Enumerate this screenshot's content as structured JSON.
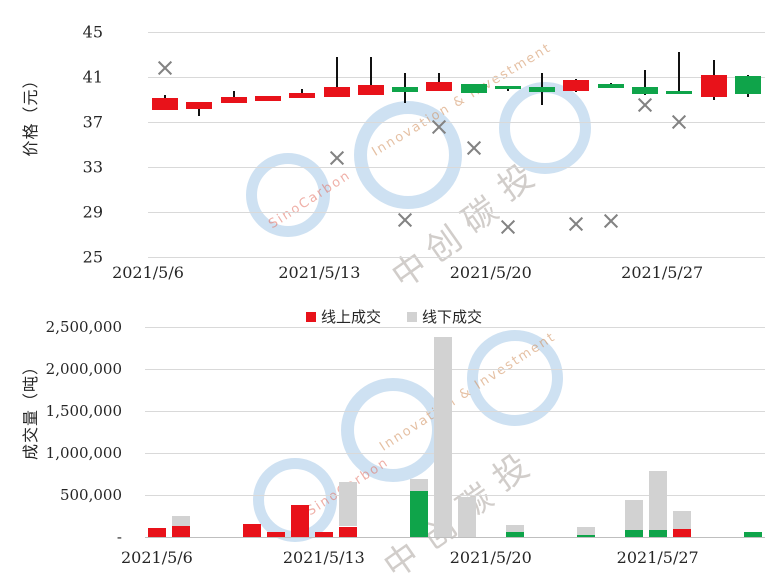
{
  "watermark": {
    "brand": "SinoCarbon",
    "tagline": "Innovation & Investment",
    "cn_chars": [
      "中",
      "创",
      "碳",
      "投"
    ]
  },
  "price_chart": {
    "y_axis_title": "价格（元）"
  },
  "volume_chart": {
    "y_axis_title": "成交量（吨）",
    "legend": [
      {
        "label": "线上成交",
        "color": "#e8121a"
      },
      {
        "label": "线下成交",
        "color": "#d2d2d2"
      }
    ]
  },
  "chart_data": [
    {
      "type": "candlestick",
      "title": "",
      "ylabel": "价格（元）",
      "ylim": [
        25,
        45
      ],
      "y_ticks": [
        45,
        41,
        37,
        33,
        29,
        25
      ],
      "x_tick_labels": [
        "2021/5/6",
        "2021/5/13",
        "2021/5/20",
        "2021/5/27"
      ],
      "grid": true,
      "up_color": "#e8121a",
      "down_color": "#0fa44a",
      "wick_color": "#111111",
      "candles": [
        {
          "date": "2021/5/6",
          "open": 38.1,
          "high": 39.4,
          "low": 38.1,
          "close": 39.1
        },
        {
          "date": "2021/5/7",
          "open": 38.2,
          "high": 38.8,
          "low": 37.5,
          "close": 38.8
        },
        {
          "date": "2021/5/10",
          "open": 38.7,
          "high": 39.8,
          "low": 38.7,
          "close": 39.2
        },
        {
          "date": "2021/5/11",
          "open": 38.9,
          "high": 39.3,
          "low": 38.9,
          "close": 39.3
        },
        {
          "date": "2021/5/12",
          "open": 39.1,
          "high": 39.9,
          "low": 39.1,
          "close": 39.6
        },
        {
          "date": "2021/5/13",
          "open": 39.2,
          "high": 42.8,
          "low": 39.2,
          "close": 40.1
        },
        {
          "date": "2021/5/14",
          "open": 39.4,
          "high": 42.8,
          "low": 39.4,
          "close": 40.3
        },
        {
          "date": "2021/5/17",
          "open": 40.1,
          "high": 41.4,
          "low": 38.7,
          "close": 39.7
        },
        {
          "date": "2021/5/18",
          "open": 39.8,
          "high": 41.4,
          "low": 39.8,
          "close": 40.6
        },
        {
          "date": "2021/5/19",
          "open": 40.4,
          "high": 40.4,
          "low": 39.6,
          "close": 39.6
        },
        {
          "date": "2021/5/20",
          "open": 40.2,
          "high": 40.2,
          "low": 39.8,
          "close": 39.9
        },
        {
          "date": "2021/5/21",
          "open": 40.1,
          "high": 41.4,
          "low": 38.5,
          "close": 39.7
        },
        {
          "date": "2021/5/24",
          "open": 39.8,
          "high": 40.8,
          "low": 39.7,
          "close": 40.7
        },
        {
          "date": "2021/5/25",
          "open": 40.4,
          "high": 40.5,
          "low": 40.0,
          "close": 40.0
        },
        {
          "date": "2021/5/26",
          "open": 40.1,
          "high": 41.6,
          "low": 39.4,
          "close": 39.5
        },
        {
          "date": "2021/5/27",
          "open": 39.8,
          "high": 43.2,
          "low": 39.5,
          "close": 39.6
        },
        {
          "date": "2021/5/28",
          "open": 39.2,
          "high": 42.5,
          "low": 39.0,
          "close": 41.2
        },
        {
          "date": "2021/5/31",
          "open": 41.1,
          "high": 41.2,
          "low": 39.2,
          "close": 39.5
        }
      ],
      "markers": {
        "symbol": "x",
        "color": "#828282",
        "points": [
          {
            "date": "2021/5/6",
            "value": 41.8
          },
          {
            "date": "2021/5/13",
            "value": 33.8
          },
          {
            "date": "2021/5/17",
            "value": 28.3
          },
          {
            "date": "2021/5/18",
            "value": 36.6
          },
          {
            "date": "2021/5/19",
            "value": 34.7
          },
          {
            "date": "2021/5/20",
            "value": 27.7
          },
          {
            "date": "2021/5/24",
            "value": 27.9
          },
          {
            "date": "2021/5/25",
            "value": 28.2
          },
          {
            "date": "2021/5/26",
            "value": 38.5
          },
          {
            "date": "2021/5/27",
            "value": 37.0
          }
        ]
      }
    },
    {
      "type": "bar",
      "stacked": true,
      "title": "",
      "ylabel": "成交量（吨）",
      "ylim": [
        0,
        2500000
      ],
      "x_range_days": [
        "2021/5/6",
        "2021/5/31"
      ],
      "x_tick_labels": [
        "2021/5/6",
        "2021/5/13",
        "2021/5/20",
        "2021/5/27"
      ],
      "grid": true,
      "series_names": [
        "线上成交",
        "线下成交"
      ],
      "offline_color": "#d2d2d2",
      "y_ticks": [
        {
          "value": 2500000,
          "label": "2,500,000"
        },
        {
          "value": 2000000,
          "label": "2,000,000"
        },
        {
          "value": 1500000,
          "label": "1,500,000"
        },
        {
          "value": 1000000,
          "label": "1,000,000"
        },
        {
          "value": 500000,
          "label": "500,000"
        },
        {
          "value": 0,
          "label": "-"
        }
      ],
      "days": [
        {
          "date": "2021/5/6",
          "online": 110000,
          "online_color": "#e8121a",
          "offline": 0
        },
        {
          "date": "2021/5/7",
          "online": 130000,
          "online_color": "#e8121a",
          "offline": 120000
        },
        {
          "date": "2021/5/10",
          "online": 150000,
          "online_color": "#e8121a",
          "offline": 0
        },
        {
          "date": "2021/5/11",
          "online": 60000,
          "online_color": "#e8121a",
          "offline": 0
        },
        {
          "date": "2021/5/12",
          "online": 380000,
          "online_color": "#e8121a",
          "offline": 0
        },
        {
          "date": "2021/5/13",
          "online": 55000,
          "online_color": "#e8121a",
          "offline": 0
        },
        {
          "date": "2021/5/14",
          "online": 125000,
          "online_color": "#e8121a",
          "offline": 530000
        },
        {
          "date": "2021/5/17",
          "online": 550000,
          "online_color": "#0fa44a",
          "offline": 140000
        },
        {
          "date": "2021/5/18",
          "online": 0,
          "online_color": "#0fa44a",
          "offline": 2380000
        },
        {
          "date": "2021/5/19",
          "online": 0,
          "online_color": "#0fa44a",
          "offline": 480000
        },
        {
          "date": "2021/5/21",
          "online": 55000,
          "online_color": "#0fa44a",
          "offline": 85000
        },
        {
          "date": "2021/5/24",
          "online": 25000,
          "online_color": "#0fa44a",
          "offline": 90000
        },
        {
          "date": "2021/5/26",
          "online": 85000,
          "online_color": "#0fa44a",
          "offline": 350000
        },
        {
          "date": "2021/5/27",
          "online": 85000,
          "online_color": "#0fa44a",
          "offline": 705000
        },
        {
          "date": "2021/5/28",
          "online": 95000,
          "online_color": "#e8121a",
          "offline": 215000
        },
        {
          "date": "2021/5/31",
          "online": 55000,
          "online_color": "#0fa44a",
          "offline": 0
        }
      ]
    }
  ]
}
